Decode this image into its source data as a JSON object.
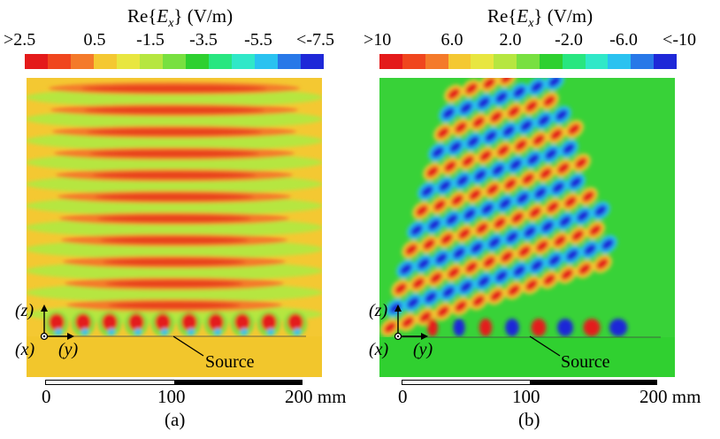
{
  "panel_a": {
    "colorbar_title": {
      "pre": "Re{",
      "var": "E",
      "sub": "x",
      "post": "} (V/m)"
    },
    "ticks": [
      ">2.5",
      "0.5",
      "-1.5",
      "-3.5",
      "-5.5",
      "<-7.5"
    ],
    "colors": [
      "#e41a1a",
      "#f0461e",
      "#f47a2a",
      "#f4c832",
      "#e8e640",
      "#b6e640",
      "#78e040",
      "#2ed030",
      "#28e680",
      "#30e8c8",
      "#2ac2f0",
      "#2878e8",
      "#1e28d8"
    ],
    "axes": {
      "z": "(z)",
      "x": "(x)",
      "y": "(y)"
    },
    "source_label": "Source",
    "scale": {
      "start": "0",
      "mid": "100",
      "end": "200 mm"
    },
    "caption": "(a)"
  },
  "panel_b": {
    "colorbar_title": {
      "pre": "Re{",
      "var": "E",
      "sub": "x",
      "post": "} (V/m)"
    },
    "ticks": [
      ">10",
      "6.0",
      "2.0",
      "-2.0",
      "-6.0",
      "<-10"
    ],
    "colors": [
      "#e41a1a",
      "#f0461e",
      "#f47a2a",
      "#f4c832",
      "#e8e640",
      "#b6e640",
      "#78e040",
      "#2ed030",
      "#28e680",
      "#30e8c8",
      "#2ac2f0",
      "#2878e8",
      "#1e28d8"
    ],
    "axes": {
      "z": "(z)",
      "x": "(x)",
      "y": "(y)"
    },
    "source_label": "Source",
    "scale": {
      "start": "0",
      "mid": "100",
      "end": "200 mm"
    },
    "caption": "(b)"
  }
}
